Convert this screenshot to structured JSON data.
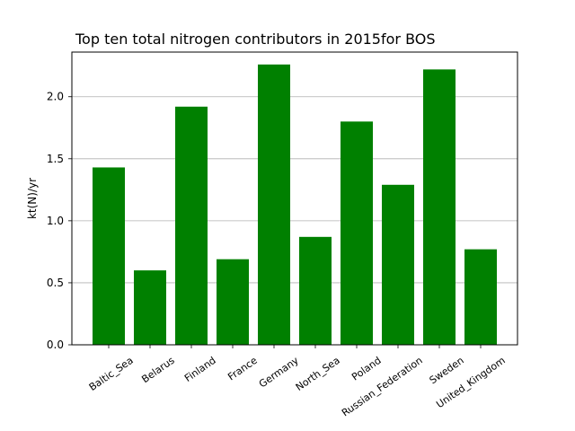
{
  "chart_data": {
    "type": "bar",
    "title": "Top ten total nitrogen contributors in 2015for  BOS",
    "xlabel": "",
    "ylabel": "kt(N)/yr",
    "categories": [
      "Baltic_Sea",
      "Belarus",
      "Finland",
      "France",
      "Germany",
      "North_Sea",
      "Poland",
      "Russian_Federation",
      "Sweden",
      "United_Kingdom"
    ],
    "values": [
      1.43,
      0.6,
      1.92,
      0.69,
      2.26,
      0.87,
      1.8,
      1.29,
      2.22,
      0.77
    ],
    "ylim": [
      0,
      2.36
    ],
    "yticks": [
      "0.0",
      "0.5",
      "1.0",
      "1.5",
      "2.0"
    ],
    "grid": "y-major",
    "bar_color": "#008000",
    "grid_color": "#b0b0b0"
  }
}
